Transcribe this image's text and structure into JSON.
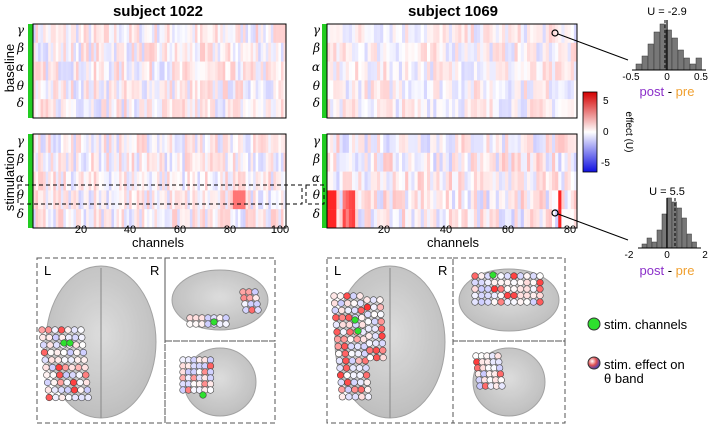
{
  "titles": {
    "left": "subject 1022",
    "right": "subject 1069"
  },
  "title_colors": {
    "left": "#d4149c",
    "right": "#2e8b57"
  },
  "row_labels": {
    "top": "baseline",
    "bottom": "stimulation"
  },
  "bands": [
    "γ",
    "β",
    "α",
    "θ",
    "δ"
  ],
  "x_axis": {
    "label": "channels",
    "left_ticks": [
      "20",
      "40",
      "60",
      "80",
      "100"
    ],
    "right_ticks": [
      "20",
      "40",
      "60",
      "80"
    ]
  },
  "colorbar": {
    "label": "effect (U)",
    "ticks": [
      "5",
      "0",
      "-5"
    ]
  },
  "hist_top": {
    "title": "U = -2.9",
    "ticks": [
      "-0.5",
      "0",
      "0.5"
    ],
    "xlabel_post": "post",
    "xlabel_sep": " - ",
    "xlabel_pre": "pre"
  },
  "hist_bottom": {
    "title": "U = 5.5",
    "ticks": [
      "-2",
      "0",
      "2"
    ],
    "xlabel_post": "post",
    "xlabel_sep": " - ",
    "xlabel_pre": "pre"
  },
  "brain_labels": {
    "left": "L",
    "right": "R"
  },
  "legend": {
    "stim": "stim. channels",
    "effect_line1": "stim. effect on",
    "effect_line2": "θ band"
  }
}
